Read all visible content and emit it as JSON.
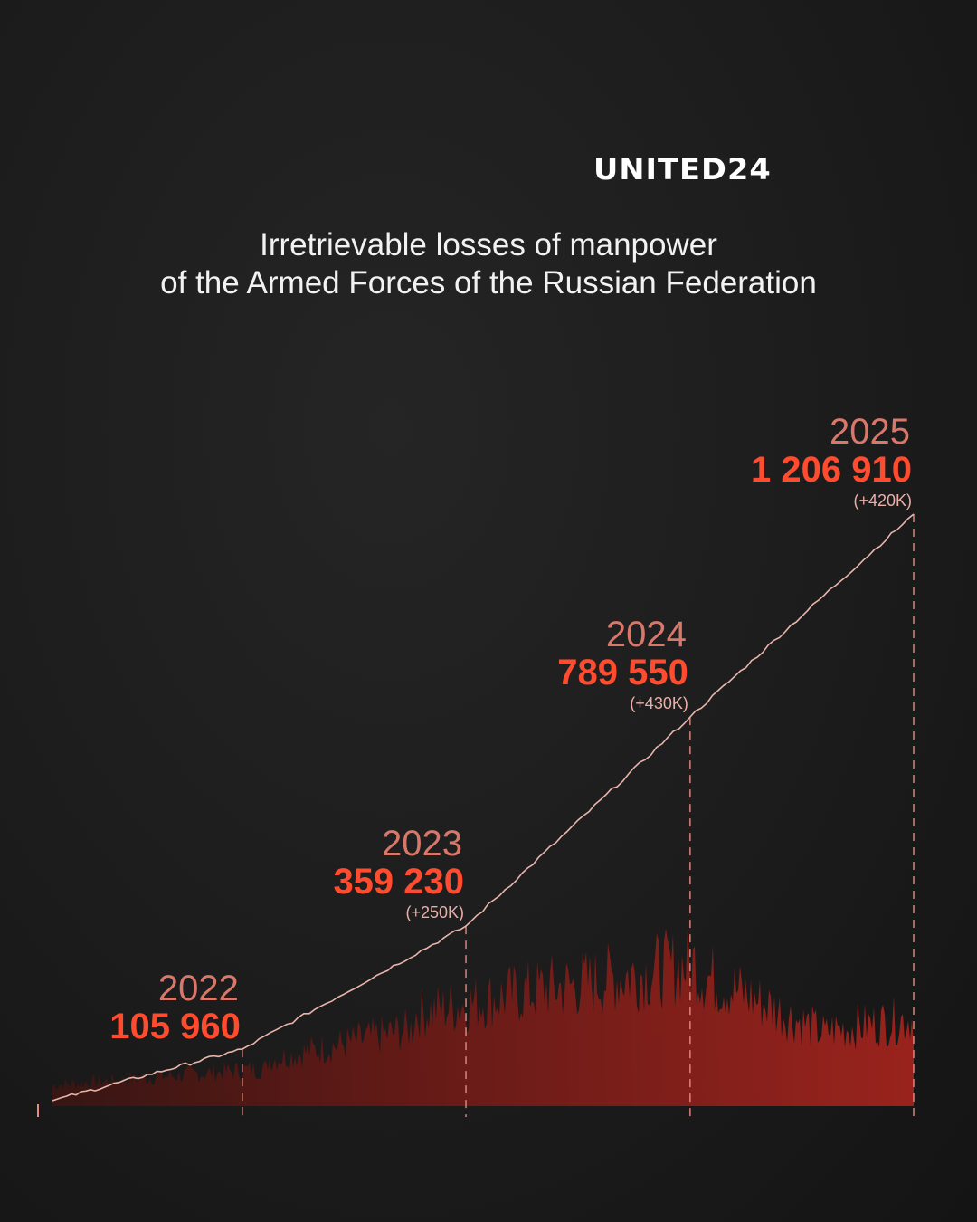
{
  "brand": {
    "logo_text": "UNITED24"
  },
  "title_lines": [
    "Irretrievable losses of manpower",
    "of the Armed Forces of the Russian Federation"
  ],
  "colors": {
    "background": "#1b1b1b",
    "value_red": "#ff4b2e",
    "year_salmon": "#d9776b",
    "line": "#e9b5ab",
    "area_red": "#b3261e"
  },
  "chart_data": {
    "type": "area",
    "title": "Irretrievable losses of manpower of the Armed Forces of the Russian Federation",
    "xlabel": "",
    "ylabel": "",
    "grid": false,
    "series": [
      {
        "values_note_excluded": true,
        "points": [
          {
            "x": "2022-02-24",
            "y": 0
          },
          {
            "x": "2022-12-31",
            "y": 105960
          },
          {
            "x": "2023-12-31",
            "y": 359230
          },
          {
            "x": "2024-12-31",
            "y": 789550
          },
          {
            "x": "2025-12-31",
            "y": 1206910
          }
        ]
      }
    ],
    "annotations": [
      {
        "year": "2022",
        "value": "105 960",
        "delta": ""
      },
      {
        "year": "2023",
        "value": "359 230",
        "delta": "(+250K)"
      },
      {
        "year": "2024",
        "value": "789 550",
        "delta": "(+430K)"
      },
      {
        "year": "2025",
        "value": "1 206 910",
        "delta": "(+420K)"
      }
    ]
  }
}
